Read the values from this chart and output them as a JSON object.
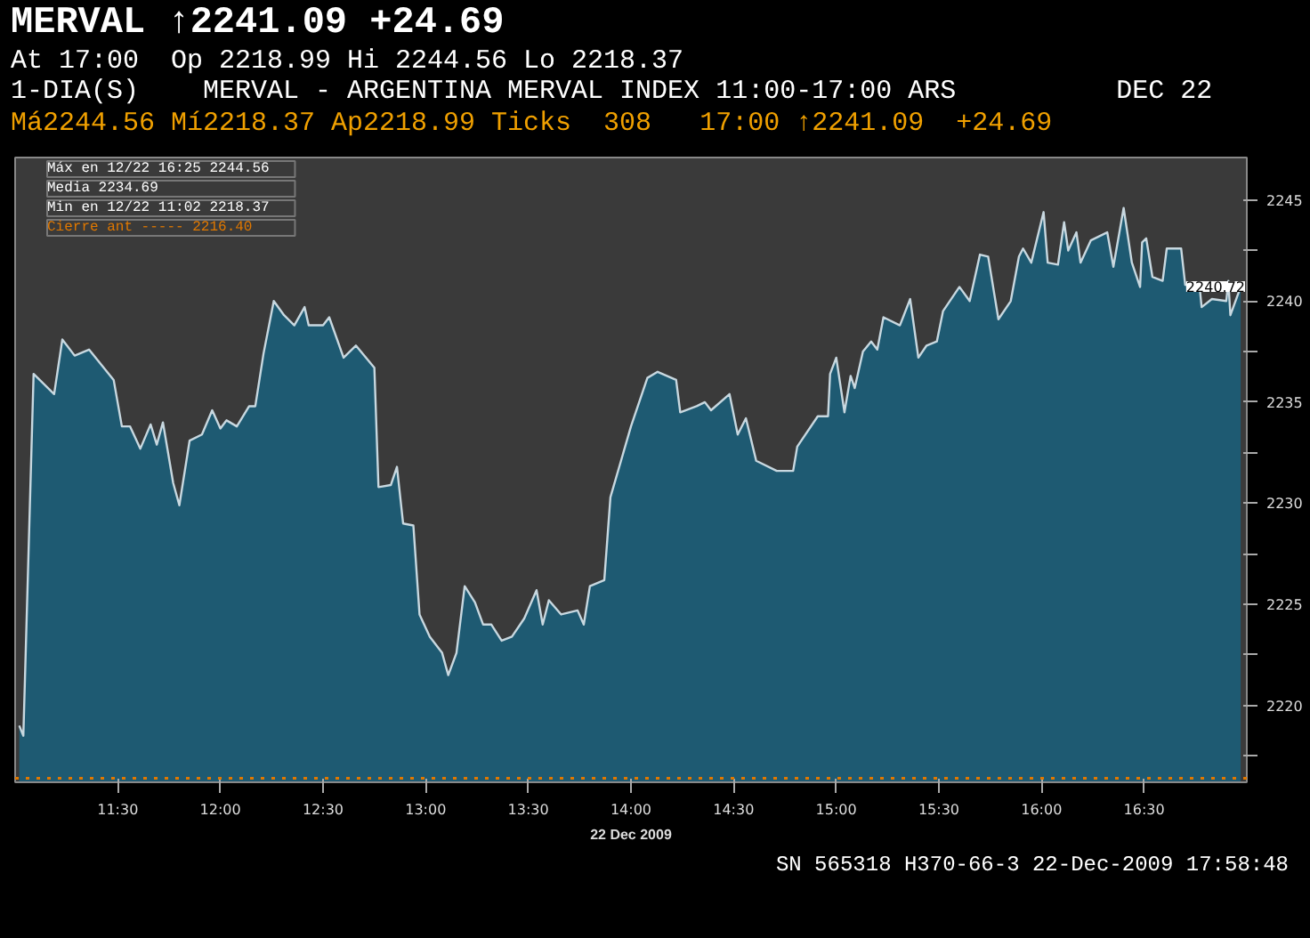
{
  "chart_data": {
    "type": "area",
    "title": "MERVAL ↑2241.09 +24.69",
    "subtitle": "At 17:00  Op 2218.99 Hi 2244.56 Lo 2218.37",
    "xlabel": "22 Dec 2009",
    "annotations": [
      "1-DIA(S)    MERVAL - ARGENTINA MERVAL INDEX 11:00-17:00 ARS          DEC 22",
      "Má2244.56 Mí2218.37 Ap2218.99 Ticks  308   17:00 ↑2241.09  +24.69",
      "Máx en  12/22 16:25   2244.56",
      "Media                 2234.69",
      "Min en  12/22 11:02   2218.37",
      {
        "text": "2240.72",
        "x": 17,
        "y": 2240.72
      },
      "SN 565318 H370-66-3 22-Dec-2009 17:58:48"
    ],
    "x": [
      11.02,
      11.04,
      11.09,
      11.19,
      11.23,
      11.29,
      11.36,
      11.48,
      11.52,
      11.56,
      11.61,
      11.66,
      11.69,
      11.72,
      11.77,
      11.8,
      11.85,
      11.91,
      11.96,
      12.0,
      12.03,
      12.08,
      12.14,
      12.17,
      12.21,
      12.26,
      12.31,
      12.36,
      12.41,
      12.43,
      12.5,
      12.53,
      12.6,
      12.66,
      12.75,
      12.77,
      12.83,
      12.86,
      12.89,
      12.94,
      12.97,
      13.02,
      13.08,
      13.11,
      13.15,
      13.19,
      13.24,
      13.28,
      13.32,
      13.37,
      13.42,
      13.48,
      13.54,
      13.57,
      13.6,
      13.66,
      13.74,
      13.77,
      13.8,
      13.87,
      13.9,
      13.96,
      14.0,
      14.08,
      14.13,
      14.22,
      14.24,
      14.32,
      14.36,
      14.39,
      14.48,
      14.52,
      14.56,
      14.61,
      14.71,
      14.79,
      14.81,
      14.91,
      14.96,
      14.97,
      15.0,
      15.04,
      15.07,
      15.09,
      15.13,
      15.17,
      15.2,
      15.23,
      15.31,
      15.36,
      15.4,
      15.44,
      15.49,
      15.52,
      15.6,
      15.65,
      15.7,
      15.74,
      15.79,
      15.85,
      15.89,
      15.91,
      15.95,
      16.01,
      16.03,
      16.08,
      16.11,
      16.13,
      16.17,
      16.19,
      16.24,
      16.32,
      16.35,
      16.4,
      16.44,
      16.48,
      16.49,
      16.51,
      16.54,
      16.59,
      16.61,
      16.68,
      16.7,
      16.77,
      16.78,
      16.83,
      16.9,
      16.91,
      16.92,
      16.97
    ],
    "series": [
      {
        "color": "#c8d8e0",
        "values": [
          2219.0,
          2218.5,
          2236.4,
          2235.4,
          2238.1,
          2237.3,
          2237.6,
          2236.1,
          2233.8,
          2233.8,
          2232.7,
          2233.9,
          2232.9,
          2234.0,
          2231.0,
          2229.9,
          2233.1,
          2233.4,
          2234.6,
          2233.7,
          2234.1,
          2233.8,
          2234.8,
          2234.8,
          2237.4,
          2240.0,
          2239.3,
          2238.8,
          2239.7,
          2238.8,
          2238.8,
          2239.2,
          2237.2,
          2237.8,
          2236.7,
          2230.8,
          2230.9,
          2231.8,
          2229.0,
          2228.9,
          2224.5,
          2223.4,
          2222.6,
          2221.5,
          2222.6,
          2225.9,
          2225.1,
          2224.0,
          2224.0,
          2223.2,
          2223.4,
          2224.3,
          2225.7,
          2224.0,
          2225.2,
          2224.5,
          2224.7,
          2224.0,
          2225.9,
          2226.2,
          2230.3,
          2232.4,
          2233.8,
          2236.2,
          2236.5,
          2236.1,
          2234.5,
          2234.8,
          2235.0,
          2234.6,
          2235.4,
          2233.4,
          2234.2,
          2232.1,
          2231.6,
          2231.6,
          2232.8,
          2234.3,
          2234.3,
          2236.4,
          2237.2,
          2234.5,
          2236.3,
          2235.7,
          2237.5,
          2238.0,
          2237.6,
          2239.2,
          2238.8,
          2240.1,
          2237.2,
          2237.8,
          2238.0,
          2239.5,
          2240.7,
          2240.0,
          2242.3,
          2242.2,
          2239.1,
          2240.0,
          2242.2,
          2242.6,
          2241.9,
          2244.4,
          2241.9,
          2241.8,
          2243.9,
          2242.5,
          2243.4,
          2241.9,
          2243.0,
          2243.4,
          2241.7,
          2244.6,
          2241.9,
          2240.7,
          2242.9,
          2243.1,
          2241.2,
          2241.0,
          2242.6,
          2242.6,
          2240.8,
          2240.7,
          2239.7,
          2240.1,
          2240.0,
          2241.0,
          2239.3,
          2240.7
        ]
      }
    ],
    "xlim": [
      11,
      17
    ],
    "ylim": [
      2216.2,
      2247.1
    ],
    "xticks": [
      {
        "value": 11.5,
        "label": "11:30"
      },
      {
        "value": 12,
        "label": "12:00"
      },
      {
        "value": 12.5,
        "label": "12:30"
      },
      {
        "value": 13,
        "label": "13:00"
      },
      {
        "value": 13.5,
        "label": "13:30"
      },
      {
        "value": 14,
        "label": "14:00"
      },
      {
        "value": 14.5,
        "label": "14:30"
      },
      {
        "value": 15,
        "label": "15:00"
      },
      {
        "value": 15.5,
        "label": "15:30"
      },
      {
        "value": 16,
        "label": "16:00"
      },
      {
        "value": 16.5,
        "label": "16:30"
      }
    ],
    "yticks": [
      {
        "value": 2217.5,
        "label": null
      },
      2220,
      {
        "value": 2222.5,
        "label": null
      },
      2225,
      {
        "value": 2227.5,
        "label": null
      },
      2230,
      {
        "value": 2232.5,
        "label": null
      },
      2235,
      {
        "value": 2237.5,
        "label": null
      },
      2240,
      {
        "value": 2242.5,
        "label": null
      },
      2245
    ],
    "ref_lines": [
      {
        "axis": "y",
        "value": 2216.4,
        "label": "Cierre ant -----      2216.40",
        "color": "#e07800",
        "line_style": "dotted"
      }
    ],
    "grid": false
  }
}
